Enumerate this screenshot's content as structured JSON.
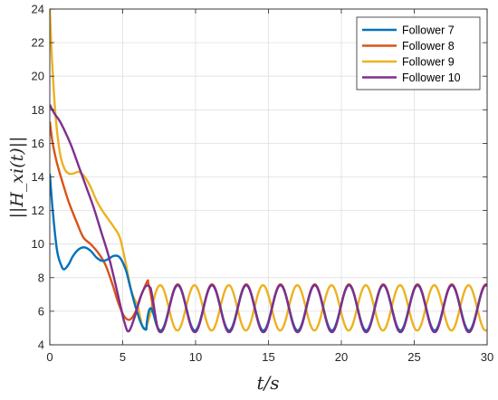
{
  "chart_data": {
    "type": "line",
    "title": "",
    "xlabel": "t/s",
    "ylabel": "||H_xi(t)||",
    "xlim": [
      0,
      30
    ],
    "ylim": [
      4,
      24
    ],
    "xticks": [
      0,
      5,
      10,
      15,
      20,
      25,
      30
    ],
    "yticks": [
      4,
      6,
      8,
      10,
      12,
      14,
      16,
      18,
      20,
      22,
      24
    ],
    "grid": true,
    "legend_position": "top-right",
    "series": [
      {
        "name": "Follower 7",
        "color": "#0072BD",
        "x": [
          0,
          0.2,
          0.5,
          0.8,
          1.0,
          1.3,
          1.6,
          2.0,
          2.4,
          2.8,
          3.2,
          3.6,
          4.0,
          4.4,
          4.8,
          5.2,
          5.5,
          5.9,
          6.3,
          6.6
        ],
        "y": [
          14.2,
          12.0,
          9.6,
          8.7,
          8.5,
          8.8,
          9.3,
          9.7,
          9.8,
          9.6,
          9.2,
          9.0,
          9.1,
          9.3,
          9.2,
          8.5,
          7.5,
          6.2,
          5.2,
          4.9
        ],
        "periodic": {
          "start": 6.6,
          "end": 30,
          "mean": 6.2,
          "amplitude": 1.35,
          "period": 2.35,
          "phase_ref": 7.6
        }
      },
      {
        "name": "Follower 8",
        "color": "#D95319",
        "x": [
          0,
          0.2,
          0.5,
          0.9,
          1.3,
          1.8,
          2.3,
          2.8,
          3.3,
          3.8,
          4.3,
          4.7,
          5.1,
          5.5,
          5.9,
          6.3,
          6.7
        ],
        "y": [
          17.3,
          16.0,
          14.8,
          13.6,
          12.5,
          11.4,
          10.4,
          10.0,
          9.5,
          8.8,
          7.6,
          6.5,
          5.7,
          5.5,
          6.0,
          7.0,
          7.8
        ],
        "periodic": {
          "start": 6.7,
          "end": 30,
          "mean": 6.2,
          "amplitude": 1.4,
          "period": 2.35,
          "phase_ref": 7.6
        }
      },
      {
        "name": "Follower 9",
        "color": "#EDB120",
        "x": [
          0,
          0.15,
          0.4,
          0.7,
          1.0,
          1.3,
          1.6,
          2.0,
          2.4,
          2.8,
          3.2,
          3.6,
          4.0,
          4.4,
          4.8,
          5.2,
          5.6,
          6.0
        ],
        "y": [
          24,
          21.0,
          17.6,
          15.4,
          14.5,
          14.2,
          14.2,
          14.3,
          14.0,
          13.4,
          12.6,
          12.0,
          11.5,
          11.0,
          10.4,
          8.9,
          7.2,
          6.4
        ],
        "periodic": {
          "start": 6.0,
          "end": 30,
          "mean": 6.2,
          "amplitude": 1.35,
          "period": 2.35,
          "phase_ref": 6.4
        }
      },
      {
        "name": "Follower 10",
        "color": "#7E2F8E",
        "x": [
          0,
          0.3,
          0.7,
          1.1,
          1.5,
          2.0,
          2.5,
          3.0,
          3.5,
          4.0,
          4.4,
          4.8,
          5.1,
          5.4,
          5.8,
          6.2,
          6.6,
          6.9
        ],
        "y": [
          18.3,
          17.8,
          17.3,
          16.6,
          15.8,
          14.6,
          13.4,
          12.2,
          10.8,
          9.4,
          8.0,
          6.5,
          5.4,
          4.8,
          5.6,
          6.8,
          7.5,
          7.4
        ],
        "periodic": {
          "start": 6.9,
          "end": 30,
          "mean": 6.15,
          "amplitude": 1.4,
          "period": 2.35,
          "phase_ref": 7.6
        }
      }
    ]
  }
}
